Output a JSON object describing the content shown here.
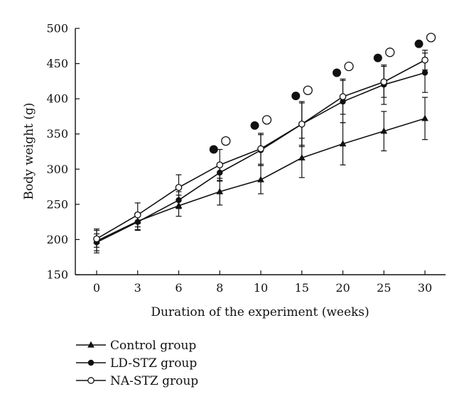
{
  "chart_data": {
    "type": "line",
    "xlabel": "Duration of the experiment (weeks)",
    "ylabel": "Body weight (g)",
    "ylim": [
      150,
      500
    ],
    "yticks": [
      150,
      200,
      250,
      300,
      350,
      400,
      450,
      500
    ],
    "categories": [
      "0",
      "3",
      "6",
      "8",
      "10",
      "15",
      "20",
      "25",
      "30"
    ],
    "grid": false,
    "legend_position": "bottom-left",
    "series": [
      {
        "name": "Control group",
        "marker": "filled-triangle",
        "values": [
          198,
          226,
          248,
          268,
          285,
          316,
          336,
          354,
          372
        ],
        "errors": [
          17,
          12,
          15,
          19,
          20,
          28,
          30,
          28,
          30
        ]
      },
      {
        "name": "LD-STZ group",
        "marker": "filled-circle",
        "values": [
          196,
          225,
          256,
          295,
          327,
          364,
          396,
          420,
          437
        ],
        "errors": [
          12,
          12,
          12,
          12,
          22,
          30,
          30,
          28,
          28
        ]
      },
      {
        "name": "NA-STZ group",
        "marker": "open-circle",
        "values": [
          201,
          235,
          274,
          306,
          329,
          364,
          403,
          424,
          455
        ],
        "errors": [
          12,
          17,
          18,
          22,
          22,
          32,
          25,
          22,
          14
        ]
      }
    ],
    "annotations": [
      {
        "x": "8",
        "symbols": [
          {
            "marker": "filled-circle",
            "y": 328
          },
          {
            "marker": "open-circle",
            "y": 340
          }
        ]
      },
      {
        "x": "10",
        "symbols": [
          {
            "marker": "filled-circle",
            "y": 362
          },
          {
            "marker": "open-circle",
            "y": 370
          }
        ]
      },
      {
        "x": "15",
        "symbols": [
          {
            "marker": "filled-circle",
            "y": 404
          },
          {
            "marker": "open-circle",
            "y": 412
          }
        ]
      },
      {
        "x": "20",
        "symbols": [
          {
            "marker": "filled-circle",
            "y": 437
          },
          {
            "marker": "open-circle",
            "y": 446
          }
        ]
      },
      {
        "x": "25",
        "symbols": [
          {
            "marker": "filled-circle",
            "y": 458
          },
          {
            "marker": "open-circle",
            "y": 466
          }
        ]
      },
      {
        "x": "30",
        "symbols": [
          {
            "marker": "filled-circle",
            "y": 478
          },
          {
            "marker": "open-circle",
            "y": 487
          }
        ]
      }
    ],
    "colors": {
      "line": "#111111",
      "background": "#ffffff"
    }
  }
}
